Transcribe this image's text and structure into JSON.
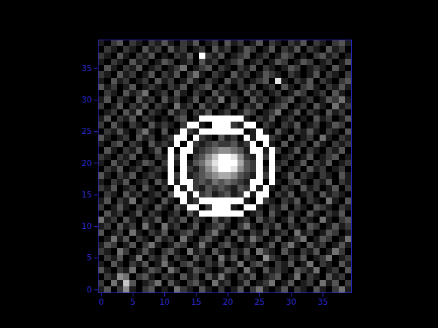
{
  "chart_data": {
    "type": "heatmap",
    "xlim": [
      -0.5,
      39.5
    ],
    "ylim": [
      -0.5,
      39.5
    ],
    "xticks": [
      0,
      5,
      10,
      15,
      20,
      25,
      30,
      35
    ],
    "yticks": [
      0,
      5,
      10,
      15,
      20,
      25,
      30,
      35
    ],
    "color_range": [
      0,
      9
    ],
    "cells": [
      [
        1,
        3,
        0,
        2,
        5,
        1,
        0,
        2,
        3,
        0,
        1,
        0,
        4,
        2,
        1,
        0,
        3,
        1,
        0,
        2,
        0,
        1,
        3,
        0,
        2,
        4,
        1,
        0,
        1,
        3,
        0,
        2,
        1,
        0,
        3,
        1,
        0,
        2,
        4,
        1
      ],
      [
        2,
        0,
        4,
        1,
        7,
        3,
        0,
        1,
        2,
        4,
        0,
        3,
        1,
        0,
        2,
        3,
        1,
        0,
        4,
        1,
        2,
        0,
        1,
        3,
        0,
        1,
        2,
        4,
        0,
        1,
        3,
        0,
        1,
        2,
        0,
        4,
        1,
        3,
        0,
        2
      ],
      [
        0,
        2,
        1,
        5,
        4,
        0,
        2,
        3,
        1,
        0,
        2,
        1,
        0,
        3,
        1,
        2,
        0,
        3,
        1,
        4,
        1,
        0,
        2,
        1,
        3,
        0,
        1,
        2,
        3,
        0,
        1,
        4,
        0,
        2,
        1,
        0,
        3,
        1,
        2,
        0
      ],
      [
        3,
        1,
        0,
        2,
        1,
        4,
        0,
        1,
        3,
        2,
        0,
        4,
        2,
        0,
        1,
        3,
        2,
        1,
        0,
        1,
        3,
        2,
        0,
        4,
        1,
        0,
        3,
        1,
        2,
        1,
        0,
        3,
        2,
        1,
        4,
        0,
        1,
        2,
        0,
        3
      ],
      [
        1,
        0,
        3,
        1,
        0,
        2,
        1,
        3,
        0,
        1,
        4,
        1,
        0,
        2,
        3,
        1,
        0,
        2,
        1,
        3,
        0,
        1,
        4,
        0,
        2,
        3,
        1,
        0,
        2,
        1,
        3,
        0,
        1,
        4,
        0,
        2,
        1,
        0,
        3,
        1
      ],
      [
        0,
        2,
        1,
        3,
        0,
        1,
        4,
        0,
        2,
        1,
        3,
        0,
        2,
        1,
        0,
        3,
        1,
        2,
        0,
        4,
        1,
        3,
        0,
        2,
        1,
        0,
        5,
        2,
        1,
        0,
        2,
        1,
        3,
        0,
        1,
        2,
        4,
        0,
        1,
        2
      ],
      [
        2,
        1,
        0,
        4,
        2,
        0,
        1,
        3,
        1,
        0,
        2,
        3,
        1,
        0,
        4,
        1,
        2,
        0,
        3,
        1,
        0,
        2,
        1,
        3,
        0,
        4,
        2,
        1,
        0,
        3,
        1,
        0,
        2,
        1,
        3,
        0,
        1,
        4,
        2,
        0
      ],
      [
        1,
        3,
        2,
        0,
        1,
        3,
        0,
        2,
        4,
        1,
        0,
        1,
        3,
        2,
        0,
        1,
        4,
        1,
        0,
        2,
        3,
        1,
        0,
        1,
        2,
        0,
        1,
        3,
        0,
        2,
        4,
        1,
        0,
        3,
        1,
        2,
        0,
        1,
        3,
        1
      ],
      [
        0,
        1,
        4,
        1,
        3,
        0,
        2,
        1,
        0,
        3,
        1,
        2,
        0,
        4,
        1,
        0,
        2,
        3,
        1,
        0,
        2,
        0,
        3,
        1,
        4,
        2,
        0,
        1,
        3,
        0,
        1,
        2,
        4,
        0,
        1,
        3,
        2,
        0,
        1,
        4
      ],
      [
        3,
        0,
        1,
        2,
        0,
        4,
        1,
        0,
        2,
        1,
        3,
        0,
        1,
        2,
        3,
        1,
        0,
        2,
        4,
        1,
        0,
        3,
        1,
        0,
        2,
        1,
        3,
        0,
        1,
        2,
        0,
        4,
        1,
        2,
        0,
        1,
        3,
        2,
        0,
        1
      ],
      [
        1,
        2,
        0,
        3,
        1,
        2,
        0,
        4,
        1,
        0,
        4,
        1,
        2,
        0,
        1,
        3,
        0,
        1,
        2,
        3,
        1,
        0,
        2,
        4,
        1,
        0,
        2,
        1,
        3,
        0,
        2,
        1,
        0,
        3,
        2,
        0,
        1,
        3,
        1,
        2
      ],
      [
        4,
        1,
        2,
        0,
        3,
        1,
        0,
        2,
        1,
        3,
        0,
        2,
        1,
        3,
        0,
        2,
        1,
        0,
        3,
        1,
        2,
        0,
        1,
        2,
        0,
        3,
        1,
        2,
        0,
        1,
        3,
        0,
        2,
        1,
        0,
        4,
        1,
        0,
        2,
        3
      ],
      [
        0,
        3,
        1,
        2,
        0,
        1,
        3,
        0,
        2,
        1,
        0,
        1,
        2,
        0,
        3,
        1,
        9,
        9,
        9,
        9,
        9,
        9,
        9,
        0,
        1,
        2,
        0,
        3,
        1,
        0,
        2,
        1,
        0,
        3,
        1,
        0,
        2,
        1,
        3,
        0
      ],
      [
        2,
        0,
        1,
        3,
        1,
        0,
        2,
        1,
        0,
        3,
        1,
        0,
        3,
        1,
        9,
        9,
        0,
        2,
        9,
        9,
        9,
        1,
        0,
        9,
        9,
        1,
        0,
        2,
        1,
        3,
        0,
        2,
        1,
        0,
        3,
        2,
        1,
        0,
        2,
        1
      ],
      [
        1,
        3,
        0,
        2,
        1,
        4,
        0,
        2,
        1,
        0,
        3,
        1,
        0,
        9,
        1,
        2,
        9,
        9,
        9,
        9,
        9,
        9,
        9,
        1,
        0,
        9,
        2,
        1,
        0,
        2,
        1,
        3,
        0,
        2,
        1,
        0,
        4,
        1,
        0,
        3
      ],
      [
        0,
        2,
        1,
        0,
        3,
        1,
        2,
        0,
        1,
        2,
        0,
        3,
        9,
        9,
        1,
        9,
        2,
        3,
        1,
        2,
        3,
        1,
        2,
        9,
        1,
        9,
        9,
        0,
        2,
        1,
        3,
        0,
        1,
        2,
        0,
        3,
        1,
        2,
        1,
        0
      ],
      [
        2,
        1,
        3,
        0,
        1,
        2,
        0,
        3,
        1,
        0,
        2,
        0,
        9,
        1,
        9,
        2,
        1,
        3,
        2,
        3,
        2,
        1,
        3,
        2,
        9,
        1,
        9,
        1,
        0,
        2,
        1,
        0,
        3,
        1,
        2,
        0,
        1,
        3,
        0,
        2
      ],
      [
        1,
        0,
        2,
        1,
        3,
        0,
        1,
        2,
        0,
        3,
        1,
        9,
        1,
        9,
        9,
        2,
        3,
        2,
        4,
        3,
        4,
        3,
        2,
        1,
        9,
        9,
        0,
        9,
        1,
        0,
        2,
        3,
        1,
        0,
        2,
        1,
        3,
        0,
        2,
        1
      ],
      [
        3,
        1,
        0,
        2,
        1,
        3,
        0,
        1,
        2,
        1,
        0,
        9,
        2,
        9,
        1,
        2,
        3,
        4,
        5,
        6,
        6,
        5,
        3,
        2,
        1,
        9,
        2,
        9,
        0,
        1,
        3,
        0,
        2,
        1,
        0,
        2,
        1,
        0,
        3,
        1
      ],
      [
        0,
        2,
        1,
        3,
        0,
        1,
        2,
        0,
        1,
        2,
        1,
        9,
        0,
        9,
        2,
        1,
        3,
        5,
        7,
        9,
        9,
        8,
        5,
        3,
        2,
        9,
        1,
        9,
        2,
        0,
        1,
        2,
        0,
        3,
        1,
        2,
        0,
        1,
        2,
        0
      ],
      [
        1,
        0,
        3,
        1,
        2,
        0,
        1,
        3,
        2,
        0,
        2,
        9,
        1,
        9,
        1,
        3,
        4,
        6,
        8,
        9,
        9,
        9,
        6,
        3,
        2,
        9,
        0,
        9,
        1,
        2,
        0,
        1,
        3,
        0,
        2,
        1,
        3,
        0,
        1,
        2
      ],
      [
        2,
        1,
        0,
        2,
        1,
        3,
        0,
        1,
        0,
        2,
        1,
        9,
        2,
        9,
        0,
        2,
        3,
        5,
        7,
        9,
        9,
        8,
        5,
        2,
        1,
        9,
        2,
        9,
        0,
        1,
        2,
        0,
        1,
        3,
        0,
        1,
        2,
        3,
        0,
        1
      ],
      [
        0,
        3,
        1,
        0,
        2,
        1,
        3,
        0,
        1,
        3,
        0,
        9,
        0,
        9,
        9,
        1,
        2,
        3,
        4,
        5,
        5,
        4,
        3,
        1,
        9,
        9,
        1,
        9,
        2,
        0,
        1,
        3,
        0,
        2,
        1,
        0,
        2,
        1,
        3,
        0
      ],
      [
        1,
        0,
        2,
        3,
        0,
        2,
        1,
        0,
        3,
        1,
        2,
        1,
        9,
        0,
        9,
        2,
        1,
        2,
        3,
        2,
        2,
        3,
        1,
        2,
        9,
        0,
        9,
        1,
        0,
        3,
        0,
        1,
        2,
        0,
        3,
        1,
        0,
        2,
        1,
        2
      ],
      [
        3,
        1,
        0,
        1,
        2,
        0,
        3,
        1,
        2,
        0,
        1,
        2,
        9,
        9,
        0,
        9,
        2,
        1,
        0,
        3,
        1,
        2,
        0,
        9,
        1,
        9,
        9,
        2,
        1,
        0,
        3,
        0,
        1,
        2,
        0,
        4,
        1,
        0,
        2,
        1
      ],
      [
        0,
        2,
        1,
        3,
        1,
        0,
        2,
        4,
        1,
        0,
        3,
        0,
        1,
        9,
        2,
        1,
        9,
        9,
        9,
        9,
        9,
        9,
        9,
        0,
        1,
        9,
        1,
        0,
        3,
        1,
        0,
        2,
        1,
        3,
        1,
        0,
        2,
        1,
        0,
        3
      ],
      [
        2,
        0,
        3,
        1,
        0,
        2,
        1,
        0,
        3,
        1,
        2,
        1,
        0,
        2,
        9,
        9,
        1,
        0,
        9,
        9,
        9,
        2,
        1,
        9,
        9,
        0,
        2,
        1,
        0,
        2,
        1,
        3,
        0,
        1,
        2,
        0,
        1,
        3,
        2,
        0
      ],
      [
        1,
        3,
        0,
        2,
        1,
        3,
        0,
        2,
        1,
        0,
        1,
        0,
        2,
        3,
        0,
        1,
        9,
        9,
        9,
        9,
        9,
        9,
        9,
        1,
        0,
        2,
        1,
        3,
        0,
        1,
        2,
        0,
        1,
        0,
        3,
        1,
        2,
        0,
        1,
        3
      ],
      [
        0,
        1,
        2,
        0,
        3,
        1,
        4,
        0,
        2,
        1,
        0,
        3,
        1,
        2,
        0,
        2,
        1,
        3,
        0,
        1,
        2,
        0,
        1,
        3,
        2,
        0,
        1,
        2,
        4,
        0,
        1,
        3,
        0,
        2,
        1,
        0,
        3,
        1,
        2,
        0
      ],
      [
        2,
        0,
        1,
        3,
        0,
        2,
        1,
        3,
        0,
        2,
        1,
        0,
        4,
        1,
        2,
        0,
        3,
        1,
        2,
        0,
        1,
        3,
        0,
        2,
        1,
        3,
        0,
        1,
        2,
        3,
        0,
        1,
        2,
        0,
        3,
        1,
        0,
        4,
        1,
        2
      ],
      [
        1,
        3,
        0,
        2,
        1,
        0,
        3,
        1,
        2,
        0,
        3,
        1,
        2,
        0,
        1,
        3,
        0,
        2,
        1,
        4,
        0,
        2,
        1,
        0,
        3,
        1,
        2,
        0,
        1,
        2,
        3,
        0,
        1,
        2,
        0,
        1,
        3,
        2,
        4,
        1
      ],
      [
        0,
        2,
        1,
        0,
        3,
        1,
        2,
        4,
        0,
        1,
        2,
        0,
        3,
        1,
        0,
        2,
        1,
        0,
        3,
        1,
        2,
        1,
        0,
        3,
        1,
        2,
        0,
        1,
        2,
        0,
        1,
        3,
        2,
        0,
        1,
        2,
        0,
        3,
        1,
        0
      ],
      [
        3,
        1,
        2,
        0,
        1,
        3,
        0,
        1,
        2,
        1,
        0,
        2,
        1,
        3,
        0,
        1,
        2,
        3,
        0,
        2,
        1,
        0,
        2,
        1,
        3,
        0,
        1,
        2,
        0,
        3,
        1,
        0,
        2,
        3,
        1,
        0,
        2,
        1,
        3,
        1
      ],
      [
        1,
        0,
        3,
        1,
        2,
        0,
        1,
        2,
        0,
        3,
        1,
        2,
        0,
        1,
        3,
        1,
        0,
        2,
        1,
        0,
        3,
        1,
        2,
        0,
        1,
        2,
        3,
        0,
        8,
        1,
        0,
        2,
        1,
        3,
        0,
        2,
        1,
        0,
        2,
        3
      ],
      [
        2,
        1,
        0,
        3,
        1,
        2,
        0,
        1,
        3,
        0,
        2,
        1,
        3,
        0,
        2,
        4,
        1,
        0,
        2,
        1,
        0,
        3,
        1,
        2,
        0,
        1,
        3,
        2,
        1,
        0,
        2,
        1,
        0,
        1,
        3,
        0,
        2,
        1,
        0,
        2
      ],
      [
        0,
        3,
        1,
        0,
        2,
        1,
        3,
        0,
        1,
        2,
        0,
        1,
        2,
        4,
        0,
        1,
        2,
        3,
        0,
        2,
        1,
        0,
        2,
        1,
        3,
        0,
        2,
        1,
        0,
        1,
        3,
        2,
        0,
        1,
        2,
        1,
        0,
        3,
        1,
        0
      ],
      [
        1,
        0,
        2,
        1,
        0,
        3,
        1,
        2,
        0,
        1,
        3,
        2,
        0,
        1,
        2,
        0,
        3,
        1,
        2,
        0,
        1,
        2,
        3,
        0,
        1,
        2,
        0,
        1,
        3,
        2,
        0,
        1,
        3,
        2,
        0,
        1,
        2,
        0,
        1,
        3
      ],
      [
        2,
        1,
        0,
        3,
        1,
        0,
        2,
        1,
        3,
        0,
        1,
        0,
        2,
        1,
        3,
        0,
        9,
        2,
        1,
        3,
        0,
        1,
        2,
        3,
        0,
        1,
        2,
        0,
        1,
        3,
        2,
        0,
        1,
        0,
        2,
        3,
        1,
        2,
        0,
        1
      ],
      [
        0,
        2,
        1,
        0,
        2,
        1,
        0,
        3,
        1,
        2,
        0,
        3,
        1,
        2,
        0,
        1,
        2,
        0,
        3,
        1,
        2,
        0,
        1,
        3,
        2,
        0,
        1,
        3,
        0,
        2,
        1,
        3,
        0,
        2,
        1,
        0,
        3,
        1,
        2,
        0
      ],
      [
        1,
        0,
        2,
        3,
        0,
        2,
        1,
        0,
        2,
        1,
        3,
        1,
        0,
        2,
        1,
        3,
        0,
        1,
        2,
        0,
        3,
        1,
        2,
        0,
        1,
        3,
        0,
        2,
        1,
        0,
        2,
        1,
        3,
        0,
        2,
        1,
        0,
        2,
        3,
        1
      ]
    ]
  }
}
